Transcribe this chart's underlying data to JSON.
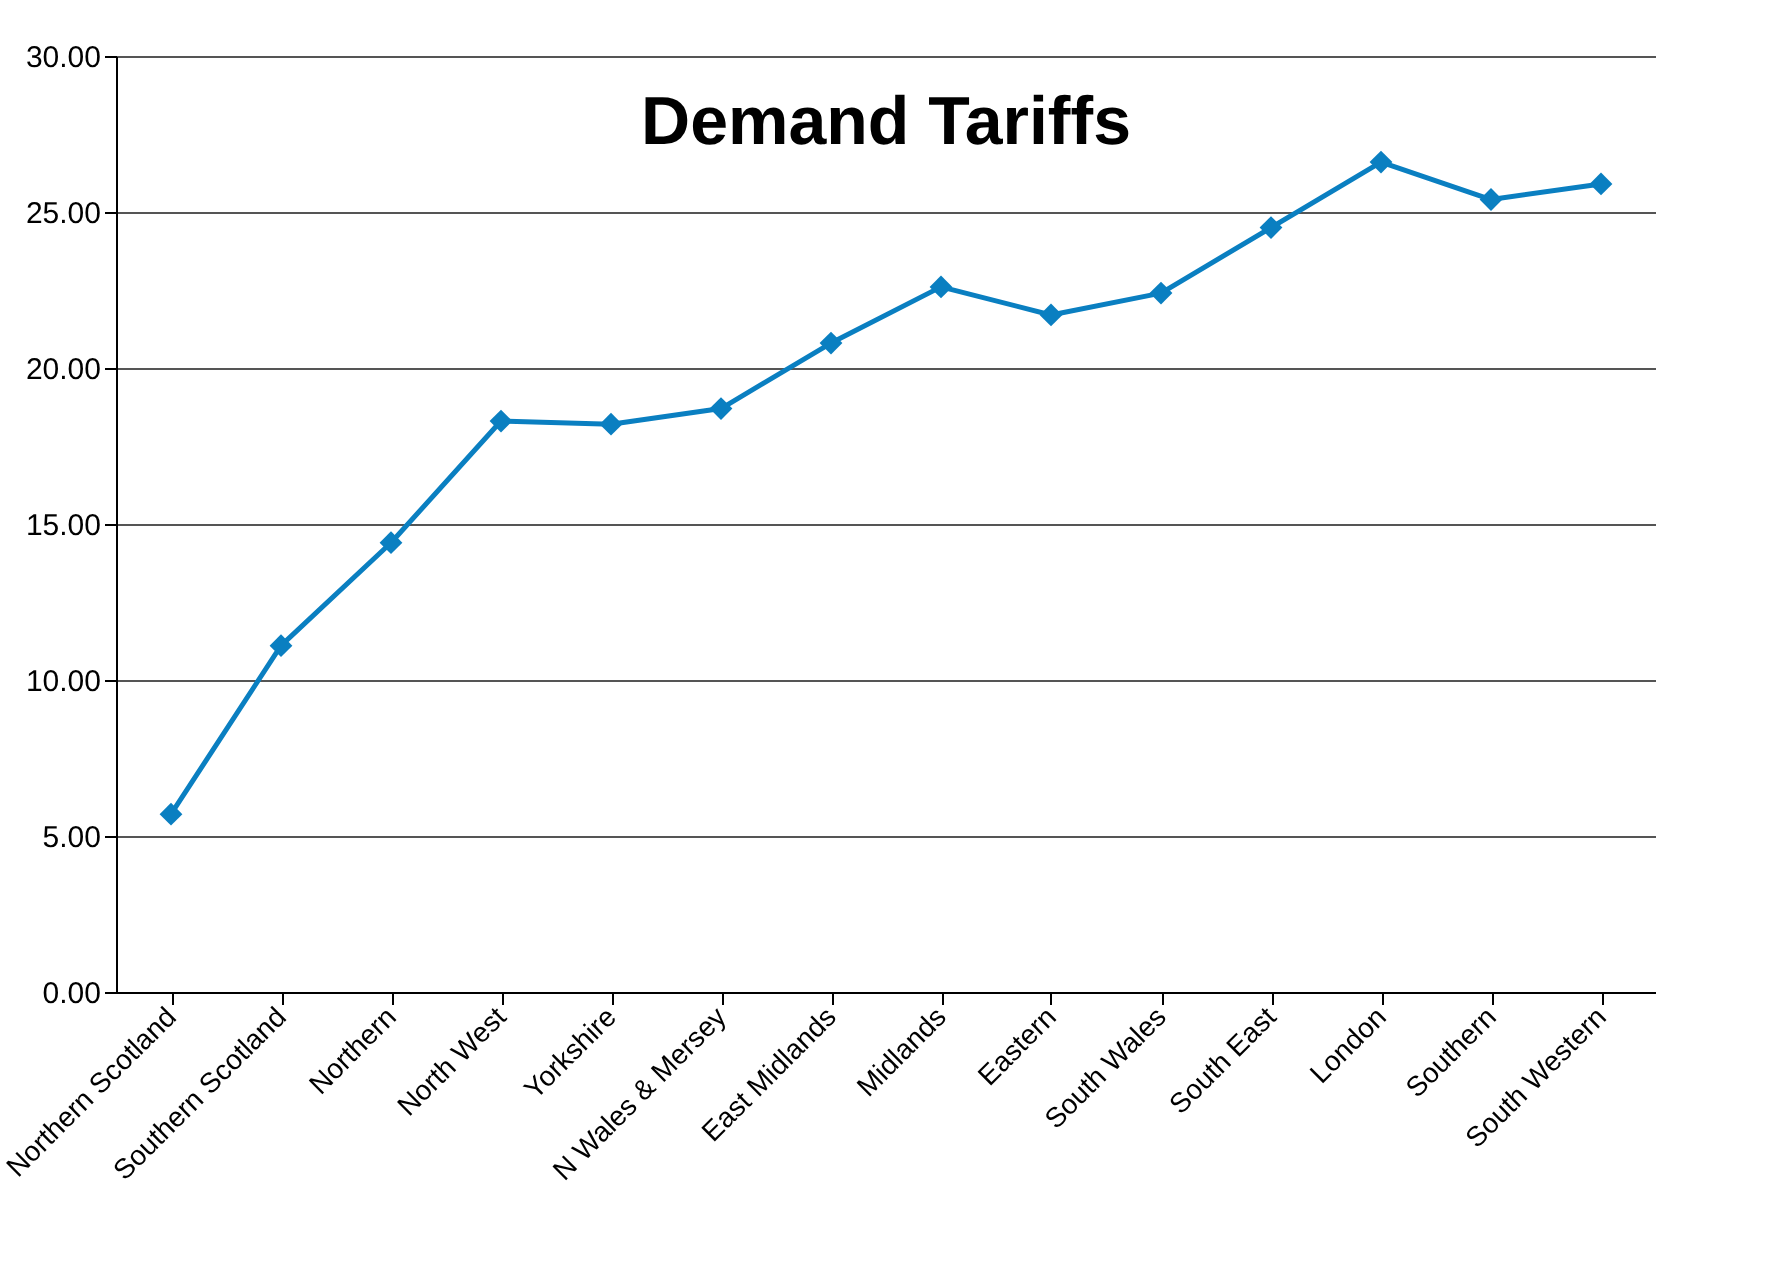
{
  "chart_data": {
    "type": "line",
    "title": "Demand Tariffs",
    "categories": [
      "Northern Scotland",
      "Southern Scotland",
      "Northern",
      "North West",
      "Yorkshire",
      "N Wales & Mersey",
      "East Midlands",
      "Midlands",
      "Eastern",
      "South Wales",
      "South East",
      "London",
      "Southern",
      "South Western"
    ],
    "series": [
      {
        "color": "#0a7fc1",
        "values": [
          5.7,
          11.1,
          14.4,
          18.3,
          18.2,
          18.7,
          20.8,
          22.6,
          21.7,
          22.4,
          24.5,
          26.6,
          25.4,
          25.9
        ]
      }
    ],
    "ylim": [
      0,
      30
    ],
    "yticks": [
      {
        "value": 0,
        "label": "0.00"
      },
      {
        "value": 5,
        "label": "5.00"
      },
      {
        "value": 10,
        "label": "10.00"
      },
      {
        "value": 15,
        "label": "15.00"
      },
      {
        "value": 20,
        "label": "20.00"
      },
      {
        "value": 25,
        "label": "25.00"
      },
      {
        "value": 30,
        "label": "30.00"
      }
    ],
    "grid": "y",
    "marker": "diamond",
    "line_style": "solid",
    "legend": false
  }
}
